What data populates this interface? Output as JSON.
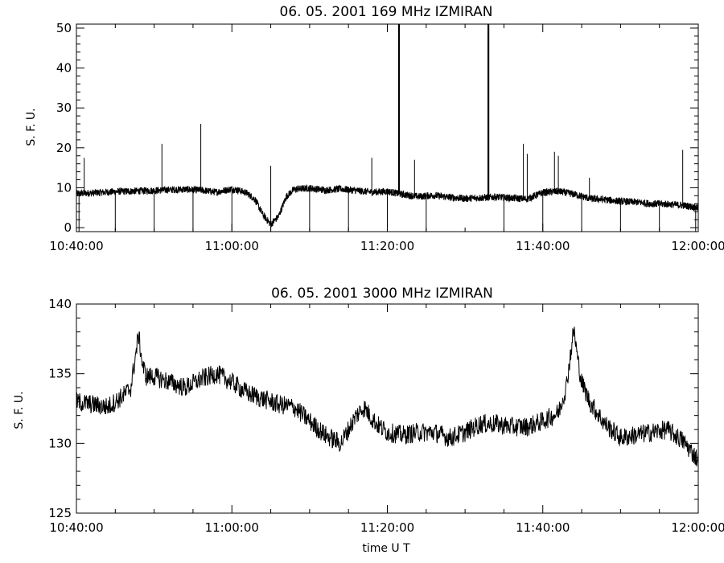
{
  "chart_data": [
    {
      "type": "line",
      "title": "06.  05.  2001    169 MHz     IZMIRAN",
      "ylabel": "S. F. U.",
      "xlabel": "",
      "xlim": [
        "10:40:00",
        "12:00:00"
      ],
      "ylim": [
        -1,
        51
      ],
      "x_ticks": [
        "10:40:00",
        "11:00:00",
        "11:20:00",
        "11:40:00",
        "12:00:00"
      ],
      "y_ticks": [
        0,
        10,
        20,
        30,
        40,
        50
      ],
      "grid": false,
      "series": [
        {
          "x_minutes_from_start": [
            0,
            2,
            4,
            6,
            8,
            10,
            12,
            14,
            16,
            18,
            20,
            21,
            22,
            23,
            24,
            25,
            26,
            27,
            28,
            30,
            32,
            34,
            36,
            38,
            40,
            42,
            44,
            46,
            48,
            50,
            52,
            54,
            56,
            58,
            60,
            62,
            64,
            66,
            68,
            70,
            72,
            74,
            76,
            78,
            80
          ],
          "y": [
            8.5,
            8.7,
            8.9,
            9.1,
            9.2,
            9.3,
            9.5,
            9.6,
            9.4,
            8.9,
            9.7,
            9.3,
            8.6,
            7.0,
            3.2,
            0.8,
            2.8,
            7.8,
            9.6,
            9.9,
            9.4,
            9.7,
            9.3,
            8.9,
            9.1,
            8.3,
            7.8,
            8.1,
            7.6,
            7.3,
            7.5,
            7.7,
            7.4,
            7.2,
            8.8,
            9.1,
            8.4,
            7.3,
            7.0,
            6.6,
            6.4,
            6.0,
            5.9,
            5.6,
            5.0
          ]
        }
      ],
      "spikes_up": [
        {
          "time": "10:41:00",
          "value": 17.5
        },
        {
          "time": "10:51:00",
          "value": 21.0
        },
        {
          "time": "10:56:00",
          "value": 26.0
        },
        {
          "time": "11:05:00",
          "value": 15.5
        },
        {
          "time": "11:18:00",
          "value": 17.5
        },
        {
          "time": "11:21:30",
          "value": 51.0
        },
        {
          "time": "11:23:30",
          "value": 17.0
        },
        {
          "time": "11:33:00",
          "value": 51.0
        },
        {
          "time": "11:37:30",
          "value": 21.0
        },
        {
          "time": "11:38:00",
          "value": 18.5
        },
        {
          "time": "11:41:30",
          "value": 19.0
        },
        {
          "time": "11:42:00",
          "value": 18.0
        },
        {
          "time": "11:46:00",
          "value": 12.5
        },
        {
          "time": "11:58:00",
          "value": 19.5
        }
      ],
      "spikes_down": [
        {
          "time": "10:40:20",
          "value": -1
        },
        {
          "time": "10:45:00",
          "value": -1
        },
        {
          "time": "10:50:00",
          "value": -1
        },
        {
          "time": "10:55:00",
          "value": -1
        },
        {
          "time": "11:00:00",
          "value": -1
        },
        {
          "time": "11:05:00",
          "value": -1
        },
        {
          "time": "11:10:00",
          "value": -1
        },
        {
          "time": "11:15:00",
          "value": -1
        },
        {
          "time": "11:20:00",
          "value": -1
        },
        {
          "time": "11:25:00",
          "value": -1
        },
        {
          "time": "11:35:00",
          "value": -1
        },
        {
          "time": "11:40:00",
          "value": -1
        },
        {
          "time": "11:45:00",
          "value": -1
        },
        {
          "time": "11:50:00",
          "value": -1
        },
        {
          "time": "11:55:00",
          "value": -1
        },
        {
          "time": "11:59:40",
          "value": -1
        }
      ]
    },
    {
      "type": "line",
      "title": "06.  05.  2001    3000 MHz     IZMIRAN",
      "ylabel": "S. F. U.",
      "xlabel": "time   U T",
      "xlim": [
        "10:40:00",
        "12:00:00"
      ],
      "ylim": [
        125,
        140
      ],
      "x_ticks": [
        "10:40:00",
        "11:00:00",
        "11:20:00",
        "11:40:00",
        "12:00:00"
      ],
      "y_ticks": [
        125,
        130,
        135,
        140
      ],
      "grid": false,
      "series": [
        {
          "x_minutes_from_start": [
            0,
            2,
            4,
            6,
            7,
            8,
            8.5,
            9,
            10,
            12,
            14,
            16,
            18,
            20,
            22,
            24,
            26,
            28,
            30,
            32,
            34,
            36,
            37,
            38,
            39,
            40,
            42,
            44,
            46,
            48,
            50,
            52,
            54,
            56,
            58,
            60,
            62,
            63,
            64,
            64.5,
            65,
            66,
            68,
            70,
            72,
            74,
            76,
            78,
            80
          ],
          "y": [
            133.0,
            132.8,
            132.6,
            133.4,
            134.0,
            137.8,
            135.6,
            134.8,
            134.8,
            134.4,
            134.0,
            134.6,
            135.0,
            134.4,
            133.6,
            133.2,
            132.8,
            132.6,
            131.6,
            130.6,
            130.0,
            132.0,
            132.6,
            131.8,
            131.2,
            130.8,
            130.6,
            130.8,
            130.8,
            130.4,
            130.8,
            131.4,
            131.4,
            131.2,
            131.2,
            131.6,
            132.2,
            134.0,
            138.2,
            136.0,
            134.4,
            133.0,
            131.4,
            130.4,
            130.6,
            130.8,
            131.0,
            130.2,
            128.8
          ]
        }
      ]
    }
  ]
}
